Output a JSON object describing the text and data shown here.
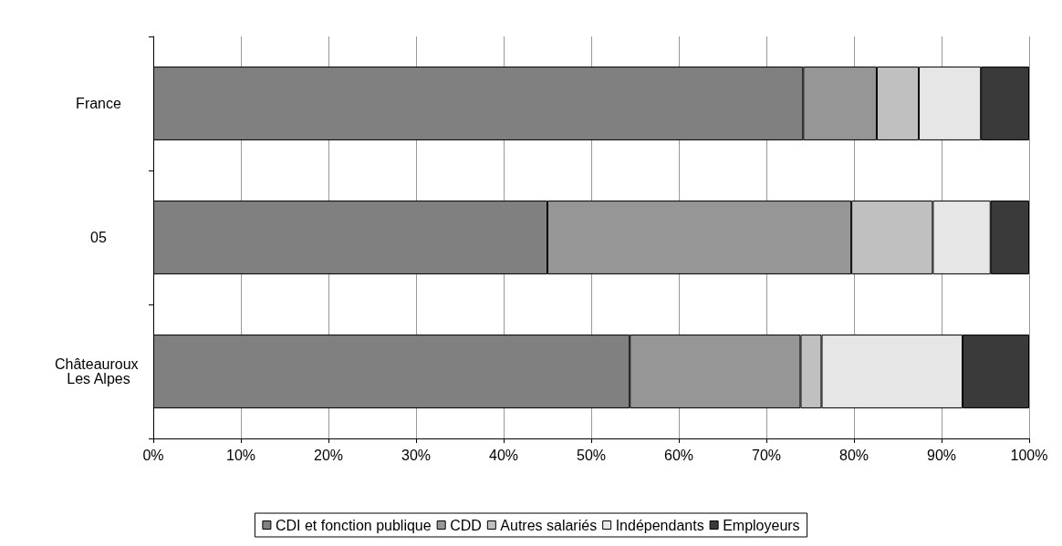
{
  "chart_data": {
    "type": "bar",
    "orientation": "horizontal",
    "stacked": true,
    "categories": [
      "France",
      "05",
      "Châteauroux Les Alpes"
    ],
    "series": [
      {
        "name": "CDI et fonction publique",
        "color": "#808080",
        "values": [
          74.2,
          45.0,
          54.4
        ]
      },
      {
        "name": "CDD",
        "color": "#969696",
        "values": [
          8.4,
          34.7,
          19.5
        ]
      },
      {
        "name": "Autres salariés",
        "color": "#c0c0c0",
        "values": [
          4.8,
          9.3,
          2.4
        ]
      },
      {
        "name": "Indépendants",
        "color": "#e6e6e6",
        "values": [
          7.1,
          6.6,
          16.1
        ]
      },
      {
        "name": "Employeurs",
        "color": "#3a3a3a",
        "values": [
          5.5,
          4.4,
          7.6
        ]
      }
    ],
    "xlim": [
      0,
      100
    ],
    "xticks": [
      {
        "value": 0,
        "label": "0%"
      },
      {
        "value": 10,
        "label": "10%"
      },
      {
        "value": 20,
        "label": "20%"
      },
      {
        "value": 30,
        "label": "30%"
      },
      {
        "value": 40,
        "label": "40%"
      },
      {
        "value": 50,
        "label": "50%"
      },
      {
        "value": 60,
        "label": "60%"
      },
      {
        "value": 70,
        "label": "70%"
      },
      {
        "value": 80,
        "label": "80%"
      },
      {
        "value": 90,
        "label": "90%"
      },
      {
        "value": 100,
        "label": "100%"
      }
    ],
    "grid": "x",
    "legend": "bottom"
  }
}
